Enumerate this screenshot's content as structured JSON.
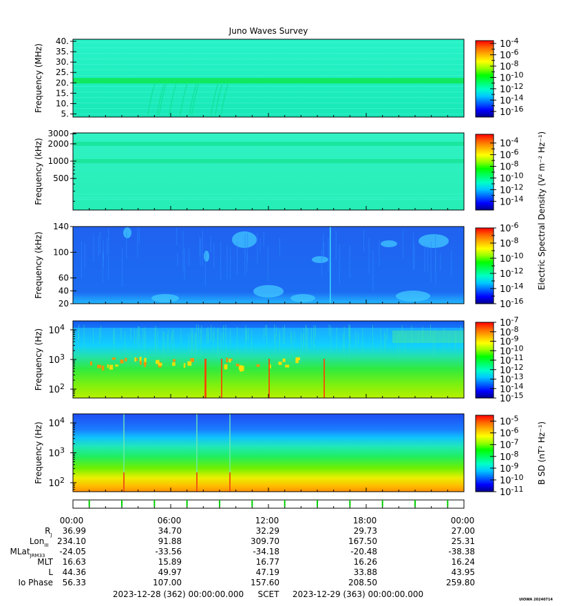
{
  "title": "Juno Waves Survey",
  "version_tag": "UIOWA 20240714",
  "colors": {
    "colormap": [
      "#00008c",
      "#0000ff",
      "#0064ff",
      "#00c8ff",
      "#00ffc8",
      "#00ff64",
      "#00ff00",
      "#96ff00",
      "#ffff00",
      "#ffb400",
      "#ff6400",
      "#ff0000"
    ],
    "panel1_bg": "#21f0c0",
    "panel2_bg": "#2cf0bd",
    "panel3_bg": "#1e66f2",
    "panel4_mid": "#17e0ae",
    "ephem_tick": "#00cc00"
  },
  "colorbar_titles": {
    "electric": "Electric Spectral Density (V² m⁻² Hz⁻¹)",
    "magnetic": "B SD (nT² Hz⁻¹)"
  },
  "chart_data": [
    {
      "type": "heatmap",
      "name": "HFR high band",
      "ylabel": "Frequency (MHz)",
      "ytick_labels": [
        "40.",
        "35.",
        "30.",
        "25.",
        "20.",
        "15.",
        "10.",
        "5."
      ],
      "yticks": [
        40,
        35,
        30,
        25,
        20,
        15,
        10,
        5
      ],
      "ylim": [
        3.5,
        41
      ],
      "yscale": "linear",
      "features": [
        {
          "type": "band",
          "freq": 21,
          "level": -12
        }
      ],
      "colorbar": {
        "ticks": [
          "10^-4",
          "10^-6",
          "10^-8",
          "10^-10",
          "10^-12",
          "10^-14",
          "10^-16"
        ],
        "exponents": [
          -4,
          -6,
          -8,
          -10,
          -12,
          -14,
          -16
        ],
        "range": [
          -17,
          -3.5
        ]
      }
    },
    {
      "type": "heatmap",
      "name": "HFR low band",
      "ylabel": "Frequency (kHz)",
      "ytick_labels": [
        "3000",
        "2000",
        "1000",
        "500"
      ],
      "yticks": [
        3000,
        2000,
        1000,
        500
      ],
      "ylim": [
        141,
        3100
      ],
      "yscale": "log",
      "features": [
        {
          "type": "band",
          "freq": 2000,
          "level": -12
        },
        {
          "type": "band",
          "freq": 1000,
          "level": -12
        }
      ],
      "colorbar": {
        "ticks": [
          "10^-4",
          "10^-6",
          "10^-8",
          "10^-10",
          "10^-12",
          "10^-14"
        ],
        "exponents": [
          -4,
          -6,
          -8,
          -10,
          -12,
          -14
        ],
        "range": [
          -15.5,
          -2.5
        ]
      }
    },
    {
      "type": "heatmap",
      "name": "LFR high",
      "ylabel": "Frequency (kHz)",
      "ytick_labels": [
        "140",
        "100",
        "60",
        "40",
        "20"
      ],
      "yticks": [
        140,
        100,
        60,
        40,
        20
      ],
      "ylim": [
        20,
        140
      ],
      "yscale": "linear",
      "colorbar": {
        "ticks": [
          "10^-6",
          "10^-8",
          "10^-10",
          "10^-12",
          "10^-14",
          "10^-16"
        ],
        "exponents": [
          -6,
          -8,
          -10,
          -12,
          -14,
          -16
        ],
        "range": [
          -16,
          -6
        ]
      }
    },
    {
      "type": "heatmap",
      "name": "LFR low electric",
      "ylabel": "Frequency (Hz)",
      "ytick_labels": [
        "10^4",
        "10^3",
        "10^2"
      ],
      "yticks": [
        10000,
        1000,
        100
      ],
      "ylim": [
        50,
        20000
      ],
      "yscale": "log",
      "colorbar": {
        "ticks": [
          "10^-7",
          "10^-8",
          "10^-9",
          "10^-10",
          "10^-11",
          "10^-12",
          "10^-13",
          "10^-14",
          "10^-15"
        ],
        "exponents": [
          -7,
          -8,
          -9,
          -10,
          -11,
          -12,
          -13,
          -14,
          -15
        ],
        "range": [
          -15,
          -7
        ]
      }
    },
    {
      "type": "heatmap",
      "name": "LFR magnetic",
      "ylabel": "Frequency (Hz)",
      "ytick_labels": [
        "10^4",
        "10^3",
        "10^2"
      ],
      "yticks": [
        10000,
        1000,
        100
      ],
      "ylim": [
        50,
        20000
      ],
      "yscale": "log",
      "colorbar": {
        "ticks": [
          "10^-5",
          "10^-6",
          "10^-7",
          "10^-8",
          "10^-9",
          "10^-10",
          "10^-11"
        ],
        "exponents": [
          -5,
          -6,
          -7,
          -8,
          -9,
          -10,
          -11
        ],
        "range": [
          -11,
          -4.5
        ]
      }
    }
  ],
  "time_axis": {
    "start_hour": 0,
    "end_hour": 24,
    "tick_labels": [
      "00:00",
      "06:00",
      "12:00",
      "18:00",
      "00:00"
    ],
    "tick_hours": [
      0,
      6,
      12,
      18,
      24
    ],
    "ephem_tick_hours": [
      1,
      3,
      5,
      7,
      9,
      11,
      13,
      15,
      17,
      19,
      21,
      23
    ]
  },
  "ephemeris": [
    {
      "label": "R",
      "sub": "J",
      "values": [
        "36.99",
        "34.70",
        "32.29",
        "29.73",
        "27.00"
      ]
    },
    {
      "label": "Lon",
      "sub": "III",
      "values": [
        "234.10",
        "91.88",
        "309.70",
        "167.50",
        "25.31"
      ]
    },
    {
      "label": "MLat",
      "sub": "JRM33",
      "values": [
        "-24.05",
        "-33.56",
        "-34.18",
        "-20.48",
        "-38.38"
      ]
    },
    {
      "label": "MLT",
      "sub": "",
      "values": [
        "16.63",
        "15.89",
        "16.77",
        "16.26",
        "16.24"
      ]
    },
    {
      "label": "L",
      "sub": "",
      "values": [
        "44.36",
        "49.97",
        "47.19",
        "33.88",
        "43.95"
      ]
    },
    {
      "label": "Io Phase",
      "sub": "",
      "values": [
        "56.33",
        "107.00",
        "157.60",
        "208.50",
        "259.80"
      ]
    }
  ],
  "footer": {
    "start": "2023-12-28 (362) 00:00:00.000",
    "scet": "SCET",
    "end": "2023-12-29 (363) 00:00:00.000"
  }
}
